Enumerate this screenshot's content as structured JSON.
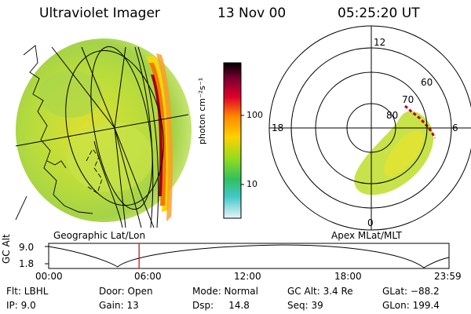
{
  "header": {
    "instrument": "Ultraviolet Imager",
    "date": "13 Nov 00",
    "time": "05:25:20 UT"
  },
  "colorbar": {
    "unit_label": "photon cm⁻²s⁻¹",
    "ticks": [
      "100",
      "10"
    ]
  },
  "left_panel": {
    "caption": "Geographic Lat/Lon"
  },
  "right_panel": {
    "caption": "Apex MLat/MLT",
    "mlt_labels": {
      "top": "12",
      "left": "18",
      "right": "6",
      "bottom": "0"
    },
    "lat_labels": [
      "60",
      "70",
      "80"
    ]
  },
  "timeline": {
    "axis_label": "GC Alt",
    "y_ticks": [
      "9.0",
      "1.8"
    ],
    "x_ticks": [
      "00:00",
      "06:00",
      "12:00",
      "18:00",
      "23:59"
    ],
    "current_time_hours": 5.42,
    "colors": {
      "marker": "#cc0000"
    }
  },
  "info": {
    "col1": [
      "Flt: LBHL",
      "IP:  9.0"
    ],
    "col2": [
      "Door: Open",
      "Gain: 13"
    ],
    "col3": [
      "Mode: Normal",
      "Dsp:     14.8"
    ],
    "col4": [
      "GC Alt: 3.4 Re",
      "Seq: 39"
    ],
    "col5": [
      "GLat: −88.2",
      "GLon: 199.4"
    ]
  }
}
